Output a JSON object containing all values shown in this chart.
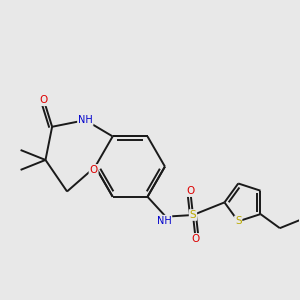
{
  "background_color": "#e8e8e8",
  "bond_color": "#1a1a1a",
  "atom_colors": {
    "O": "#dd0000",
    "N": "#0000cc",
    "S": "#bbaa00",
    "C": "#1a1a1a"
  },
  "figsize": [
    3.0,
    3.0
  ],
  "dpi": 100
}
